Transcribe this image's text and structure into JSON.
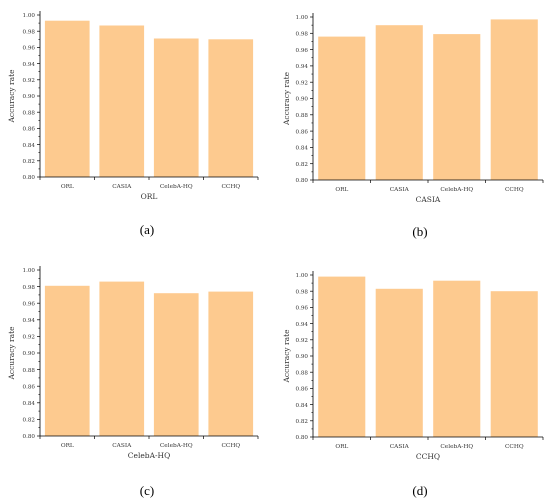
{
  "style": {
    "bar_color": "#fdca8f",
    "axis_color": "#000000",
    "text_color": "#333333"
  },
  "chart_data": [
    {
      "type": "bar",
      "caption": "(a)",
      "xlabel": "ORL",
      "ylabel": "Accuracy rate",
      "categories": [
        "ORL",
        "CASIA",
        "CelebA-HQ",
        "CCHQ"
      ],
      "values": [
        0.993,
        0.987,
        0.971,
        0.97
      ],
      "ylim": [
        0.8,
        1.0
      ],
      "yticks": [
        "0.80",
        "0.82",
        "0.84",
        "0.86",
        "0.88",
        "0.90",
        "0.92",
        "0.94",
        "0.96",
        "0.98",
        "1.00"
      ],
      "grid": false,
      "legend": "none"
    },
    {
      "type": "bar",
      "caption": "(b)",
      "xlabel": "CASIA",
      "ylabel": "Accuracy rate",
      "categories": [
        "ORL",
        "CASIA",
        "CelebA-HQ",
        "CCHQ"
      ],
      "values": [
        0.976,
        0.99,
        0.979,
        0.997
      ],
      "ylim": [
        0.8,
        1.0
      ],
      "yticks": [
        "0.80",
        "0.82",
        "0.84",
        "0.86",
        "0.88",
        "0.90",
        "0.92",
        "0.94",
        "0.96",
        "0.98",
        "1.00"
      ],
      "grid": false,
      "legend": "none"
    },
    {
      "type": "bar",
      "caption": "(c)",
      "xlabel": "CelebA-HQ",
      "ylabel": "Accuracy rate",
      "categories": [
        "ORL",
        "CASIA",
        "CelebA-HQ",
        "CCHQ"
      ],
      "values": [
        0.981,
        0.986,
        0.972,
        0.974
      ],
      "ylim": [
        0.8,
        1.0
      ],
      "yticks": [
        "0.80",
        "0.82",
        "0.84",
        "0.86",
        "0.88",
        "0.90",
        "0.92",
        "0.94",
        "0.96",
        "0.98",
        "1.00"
      ],
      "grid": false,
      "legend": "none"
    },
    {
      "type": "bar",
      "caption": "(d)",
      "xlabel": "CCHQ",
      "ylabel": "Accuracy rate",
      "categories": [
        "ORL",
        "CASIA",
        "CelebA-HQ",
        "CCHQ"
      ],
      "values": [
        0.998,
        0.983,
        0.993,
        0.98
      ],
      "ylim": [
        0.8,
        1.0
      ],
      "yticks": [
        "0.80",
        "0.82",
        "0.84",
        "0.86",
        "0.88",
        "0.90",
        "0.92",
        "0.94",
        "0.96",
        "0.98",
        "1.00"
      ],
      "grid": false,
      "legend": "none"
    }
  ]
}
